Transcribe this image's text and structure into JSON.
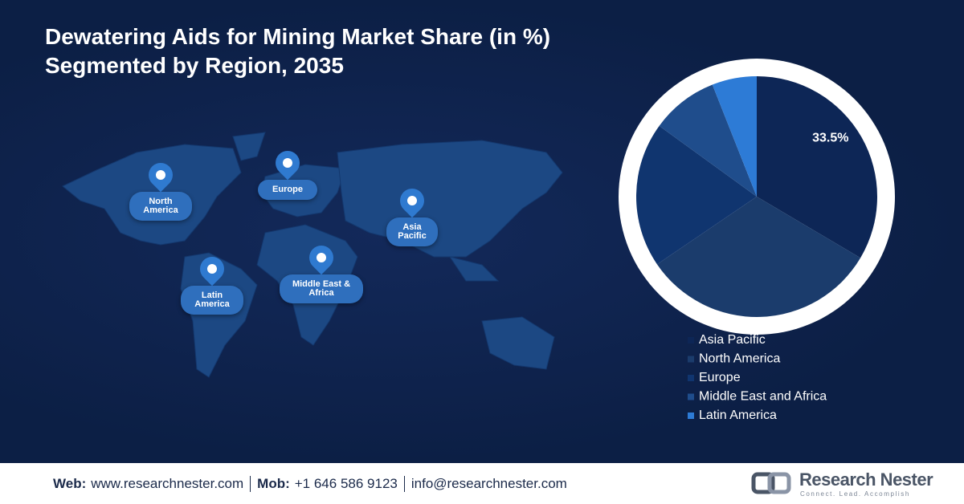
{
  "chart_data": {
    "type": "pie",
    "title": "Dewatering Aids for Mining Market Share (in %)",
    "subtitle": "Segmented by Region, 2035",
    "categories": [
      "Asia Pacific",
      "North America",
      "Europe",
      "Middle East and Africa",
      "Latin America"
    ],
    "values": [
      33.5,
      32,
      19.5,
      9,
      6
    ],
    "value_labels": [
      "33.5%",
      null,
      null,
      null,
      null
    ],
    "colors": [
      "#0d2656",
      "#1b3c6c",
      "#10356f",
      "#1f4d8c",
      "#2d7bd6"
    ]
  },
  "map": {
    "labels": [
      "North America",
      "Europe",
      "Asia Pacific",
      "Latin America",
      "Middle East & Africa"
    ]
  },
  "footer": {
    "web_label": "Web:",
    "web": "www.researchnester.com",
    "mob_label": "Mob:",
    "mob": "+1 646 586 9123",
    "email": "info@researchnester.com"
  },
  "logo": {
    "name": "Research Nester",
    "tagline": "Connect. Lead. Accomplish"
  }
}
